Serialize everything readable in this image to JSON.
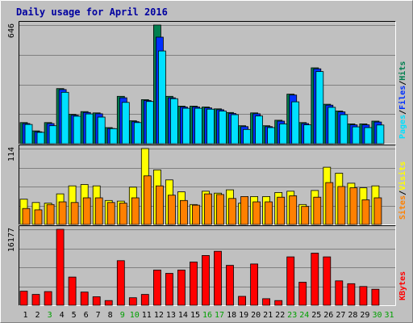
{
  "colors": {
    "background": "#c0c0c0",
    "panel": "#c0c0c0",
    "grid": "#808080",
    "hits": "#007f4f",
    "files": "#0030ff",
    "pages": "#00e0ff",
    "visits": "#ffff00",
    "sites": "#ff8000",
    "kbytes": "#ff0000",
    "weekday_label": "#000000",
    "weekend_label": "#00a000"
  },
  "chart_data": {
    "type": "bar",
    "title": "Daily usage for April 2016",
    "days": [
      "1",
      "2",
      "3",
      "4",
      "5",
      "6",
      "7",
      "8",
      "9",
      "10",
      "11",
      "12",
      "13",
      "14",
      "15",
      "16",
      "17",
      "18",
      "19",
      "20",
      "21",
      "22",
      "23",
      "24",
      "25",
      "26",
      "27",
      "28",
      "29",
      "30",
      "31"
    ],
    "weekend_days": [
      "3",
      "9",
      "10",
      "16",
      "17",
      "23",
      "24",
      "30",
      "31"
    ],
    "panels": [
      {
        "id": "hits-panel",
        "ymax_label": "646",
        "ymax": 646,
        "legend": [
          {
            "text": "Pages",
            "color_key": "pages"
          },
          {
            "text": "/",
            "color_key": "separator"
          },
          {
            "text": "Files",
            "color_key": "files"
          },
          {
            "text": "/",
            "color_key": "separator"
          },
          {
            "text": "Hits",
            "color_key": "hits"
          }
        ],
        "series": [
          {
            "key": "hits",
            "values": [
              115,
              70,
              115,
              300,
              160,
              175,
              168,
              88,
              258,
              125,
              240,
              646,
              258,
              205,
              205,
              200,
              190,
              170,
              98,
              168,
              98,
              128,
              270,
              115,
              413,
              215,
              178,
              108,
              108,
              123,
              0
            ]
          },
          {
            "key": "files",
            "values": [
              110,
              65,
              110,
              295,
              155,
              170,
              163,
              83,
              250,
              120,
              235,
              580,
              250,
              200,
              200,
              195,
              185,
              165,
              93,
              163,
              93,
              123,
              265,
              110,
              408,
              210,
              173,
              103,
              103,
              118,
              0
            ]
          },
          {
            "key": "pages",
            "values": [
              105,
              62,
              98,
              280,
              150,
              162,
              145,
              82,
              225,
              115,
              230,
              505,
              245,
              193,
              193,
              188,
              178,
              158,
              78,
              151,
              88,
              108,
              228,
              103,
              393,
              198,
              158,
              92,
              88,
              102,
              0
            ]
          }
        ]
      },
      {
        "id": "visits-panel",
        "ymax_label": "114",
        "ymax": 114,
        "legend": [
          {
            "text": "Sites",
            "color_key": "sites"
          },
          {
            "text": "/",
            "color_key": "separator"
          },
          {
            "text": "Visits",
            "color_key": "visits"
          }
        ],
        "series": [
          {
            "key": "visits",
            "values": [
              38,
              33,
              32,
              46,
              58,
              60,
              58,
              36,
              35,
              56,
              114,
              82,
              67,
              49,
              30,
              50,
              47,
              52,
              32,
              42,
              42,
              48,
              50,
              30,
              51,
              86,
              77,
              62,
              55,
              58,
              0
            ]
          },
          {
            "key": "sites",
            "values": [
              24,
              22,
              30,
              34,
              33,
              40,
              40,
              33,
              32,
              40,
              73,
              58,
              44,
              36,
              29,
              46,
              45,
              39,
              42,
              34,
              34,
              41,
              43,
              27,
              41,
              63,
              57,
              55,
              37,
              40,
              0
            ]
          }
        ]
      },
      {
        "id": "kbytes-panel",
        "ymax_label": "16177",
        "ymax": 16177,
        "legend": [
          {
            "text": "KBytes",
            "color_key": "kbytes"
          }
        ],
        "series": [
          {
            "key": "kbytes",
            "values": [
              3000,
              2300,
              2900,
              16177,
              6000,
              2800,
              1800,
              1000,
              9500,
              1600,
              2300,
              7500,
              6800,
              7500,
              9200,
              10600,
              11500,
              8500,
              1900,
              8800,
              1400,
              1000,
              10300,
              4900,
              11100,
              10300,
              5200,
              4600,
              4000,
              3400,
              0
            ]
          }
        ]
      }
    ],
    "grid": true
  }
}
